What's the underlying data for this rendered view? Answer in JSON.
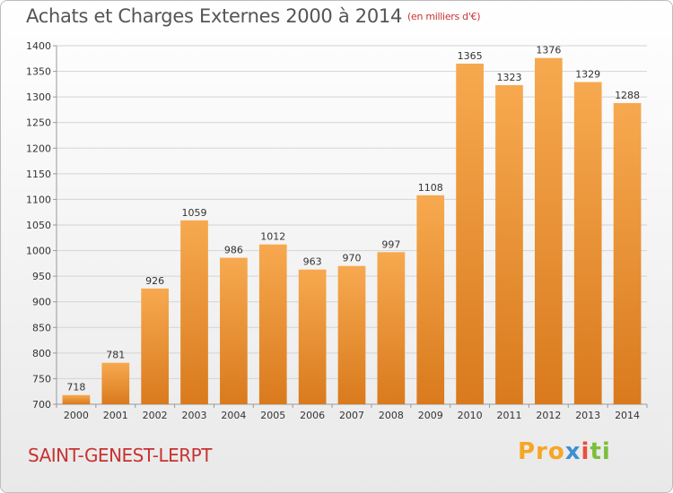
{
  "header": {
    "title": "Achats et Charges Externes 2000 à 2014",
    "subtitle": "(en milliers d'€)"
  },
  "footer": {
    "commune": "SAINT-GENEST-LERPT",
    "logo_parts": [
      "Pro",
      "x",
      "i",
      "ti"
    ]
  },
  "colors": {
    "bar_top": "#f7a94f",
    "bar_bottom": "#d97a1d",
    "grid": "#d4d4d4",
    "axis_text": "#333333",
    "title": "#555555",
    "accent_red": "#c83232"
  },
  "chart_data": {
    "type": "bar",
    "title": "Achats et Charges Externes 2000 à 2014",
    "subtitle": "(en milliers d'€)",
    "xlabel": "",
    "ylabel": "",
    "categories": [
      "2000",
      "2001",
      "2002",
      "2003",
      "2004",
      "2005",
      "2006",
      "2007",
      "2008",
      "2009",
      "2010",
      "2011",
      "2012",
      "2013",
      "2014"
    ],
    "values": [
      718,
      781,
      926,
      1059,
      986,
      1012,
      963,
      970,
      997,
      1108,
      1365,
      1323,
      1376,
      1329,
      1288
    ],
    "ylim": [
      700,
      1400
    ],
    "yticks": [
      700,
      750,
      800,
      850,
      900,
      950,
      1000,
      1050,
      1100,
      1150,
      1200,
      1250,
      1300,
      1350,
      1400
    ],
    "grid": true,
    "data_labels": true
  }
}
